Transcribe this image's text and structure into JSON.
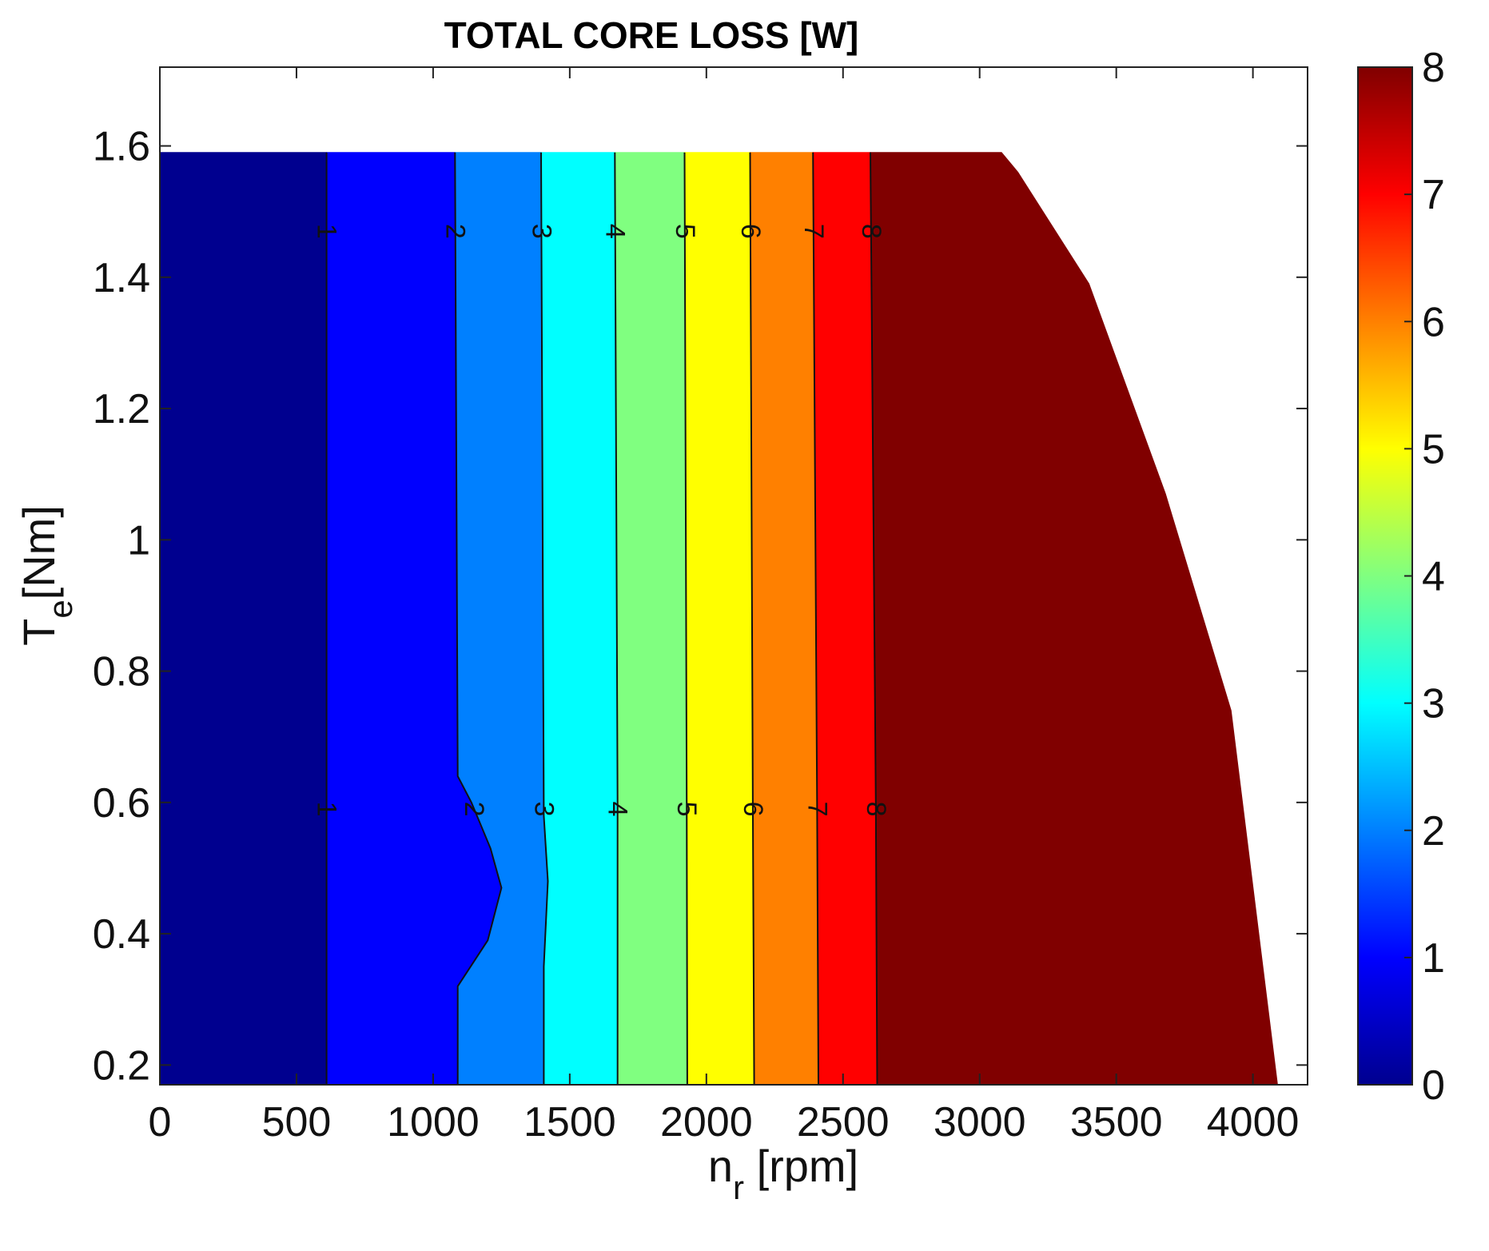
{
  "chart_data": {
    "type": "contourf",
    "title": "TOTAL CORE LOSS [W]",
    "xlabel_main": "n",
    "xlabel_sub": "r",
    "xlabel_unit": "[rpm]",
    "ylabel_main": "T",
    "ylabel_sub": "e",
    "ylabel_unit": "[Nm]",
    "xlim": [
      0,
      4200
    ],
    "ylim": [
      0.17,
      1.72
    ],
    "xticks": [
      0,
      500,
      1000,
      1500,
      2000,
      2500,
      3000,
      3500,
      4000
    ],
    "yticks": [
      0.2,
      0.4,
      0.6,
      0.8,
      1,
      1.2,
      1.4,
      1.6
    ],
    "colorbar": {
      "min": 0,
      "max": 8,
      "ticks": [
        0,
        1,
        2,
        3,
        4,
        5,
        6,
        7,
        8
      ],
      "colors": [
        "#00008f",
        "#0000ff",
        "#0080ff",
        "#00ffff",
        "#80ff80",
        "#ffff00",
        "#ff8000",
        "#ff0000",
        "#800000"
      ]
    },
    "domain_boundary": [
      {
        "x": 3080,
        "y": 1.59
      },
      {
        "x": 3140,
        "y": 1.56
      },
      {
        "x": 3400,
        "y": 1.39
      },
      {
        "x": 3680,
        "y": 1.07
      },
      {
        "x": 3920,
        "y": 0.74
      },
      {
        "x": 4090,
        "y": 0.17
      }
    ],
    "bands": [
      {
        "level": "0-1",
        "color": "#00008f"
      },
      {
        "level": "1-2",
        "color": "#0000ff"
      },
      {
        "level": "2-3",
        "color": "#0080ff"
      },
      {
        "level": "3-4",
        "color": "#00ffff"
      },
      {
        "level": "4-5",
        "color": "#80ff80"
      },
      {
        "level": "5-6",
        "color": "#ffff00"
      },
      {
        "level": "6-7",
        "color": "#ff8000"
      },
      {
        "level": "7-8",
        "color": "#ff0000"
      },
      {
        "level": ">8",
        "color": "#800000"
      }
    ],
    "contours": [
      {
        "label": "1",
        "points": [
          {
            "x": 610,
            "y": 1.59
          },
          {
            "x": 610,
            "y": 0.17
          }
        ]
      },
      {
        "label": "2",
        "points": [
          {
            "x": 1080,
            "y": 1.59
          },
          {
            "x": 1090,
            "y": 0.64
          },
          {
            "x": 1140,
            "y": 0.6
          },
          {
            "x": 1210,
            "y": 0.53
          },
          {
            "x": 1250,
            "y": 0.47
          },
          {
            "x": 1200,
            "y": 0.39
          },
          {
            "x": 1090,
            "y": 0.32
          },
          {
            "x": 1090,
            "y": 0.17
          }
        ]
      },
      {
        "label": "3",
        "points": [
          {
            "x": 1395,
            "y": 1.59
          },
          {
            "x": 1405,
            "y": 0.58
          },
          {
            "x": 1420,
            "y": 0.48
          },
          {
            "x": 1405,
            "y": 0.35
          },
          {
            "x": 1405,
            "y": 0.17
          }
        ]
      },
      {
        "label": "4",
        "points": [
          {
            "x": 1665,
            "y": 1.59
          },
          {
            "x": 1675,
            "y": 0.6
          },
          {
            "x": 1675,
            "y": 0.17
          }
        ]
      },
      {
        "label": "5",
        "points": [
          {
            "x": 1920,
            "y": 1.59
          },
          {
            "x": 1928,
            "y": 0.6
          },
          {
            "x": 1930,
            "y": 0.17
          }
        ]
      },
      {
        "label": "6",
        "points": [
          {
            "x": 2160,
            "y": 1.59
          },
          {
            "x": 2170,
            "y": 0.6
          },
          {
            "x": 2175,
            "y": 0.17
          }
        ]
      },
      {
        "label": "7",
        "points": [
          {
            "x": 2390,
            "y": 1.59
          },
          {
            "x": 2405,
            "y": 0.6
          },
          {
            "x": 2410,
            "y": 0.17
          }
        ]
      },
      {
        "label": "8",
        "points": [
          {
            "x": 2600,
            "y": 1.59
          },
          {
            "x": 2620,
            "y": 0.6
          },
          {
            "x": 2625,
            "y": 0.17
          }
        ]
      }
    ],
    "contour_label_y": [
      1.47,
      0.59
    ]
  }
}
